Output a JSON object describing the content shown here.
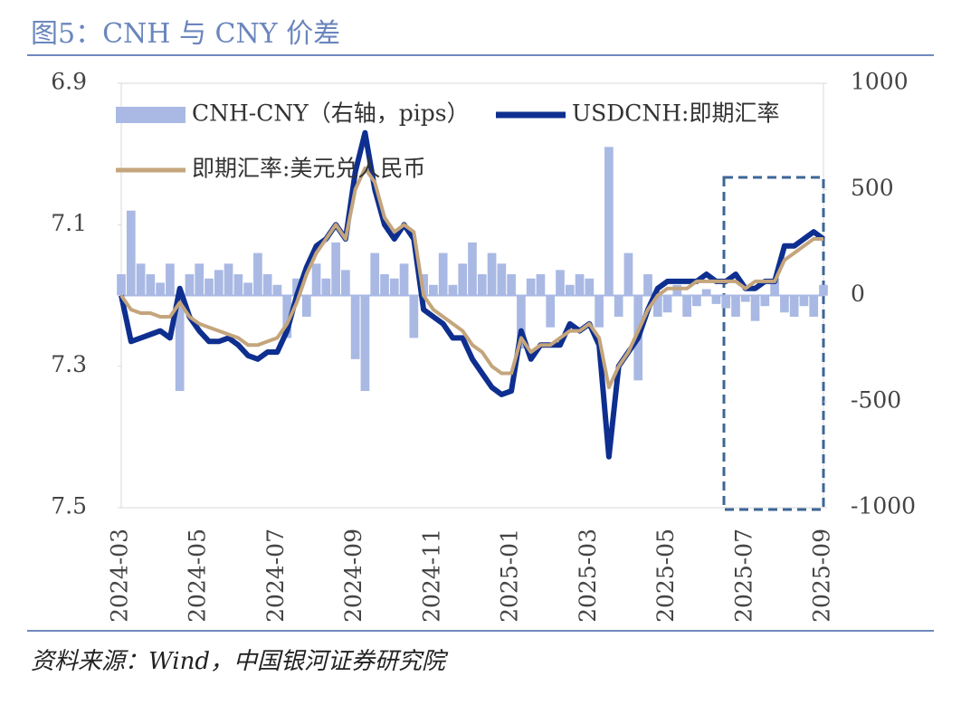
{
  "header": {
    "title": "图5：CNH 与 CNY 价差"
  },
  "chart_data": {
    "type": "bar-line",
    "categories": [
      "2024-03",
      null,
      null,
      null,
      null,
      null,
      null,
      null,
      "2024-05",
      null,
      null,
      null,
      null,
      null,
      null,
      null,
      "2024-07",
      null,
      null,
      null,
      null,
      null,
      null,
      null,
      "2024-09",
      null,
      null,
      null,
      null,
      null,
      null,
      null,
      "2024-11",
      null,
      null,
      null,
      null,
      null,
      null,
      null,
      "2025-01",
      null,
      null,
      null,
      null,
      null,
      null,
      null,
      "2025-03",
      null,
      null,
      null,
      null,
      null,
      null,
      null,
      "2025-05",
      null,
      null,
      null,
      null,
      null,
      null,
      null,
      "2025-07",
      null,
      null,
      null,
      null,
      null,
      null,
      null,
      "2025-09"
    ],
    "series": [
      {
        "name": "CNH-CNY（右轴，pips）",
        "type": "bar",
        "axis": "y2",
        "color": "#a9b9e4",
        "values": [
          100,
          400,
          150,
          100,
          60,
          150,
          -450,
          100,
          150,
          80,
          120,
          150,
          100,
          60,
          200,
          100,
          50,
          -200,
          80,
          -100,
          150,
          80,
          250,
          120,
          -300,
          -450,
          200,
          100,
          80,
          150,
          -200,
          100,
          50,
          200,
          50,
          150,
          250,
          100,
          200,
          150,
          100,
          -250,
          80,
          100,
          -150,
          120,
          50,
          100,
          80,
          -150,
          700,
          -100,
          200,
          -400,
          100,
          -100,
          -80,
          50,
          -100,
          -50,
          30,
          -40,
          -60,
          -100,
          -30,
          -120,
          -50,
          80,
          -80,
          -100,
          -50,
          -100,
          50
        ]
      },
      {
        "name": "USDCNH:即期汇率",
        "type": "line",
        "color": "#0e2f8f",
        "values": [
          7.2,
          7.265,
          7.26,
          7.255,
          7.25,
          7.26,
          7.19,
          7.23,
          7.25,
          7.265,
          7.265,
          7.26,
          7.27,
          7.285,
          7.29,
          7.28,
          7.28,
          7.25,
          7.2,
          7.16,
          7.13,
          7.12,
          7.1,
          7.12,
          7.025,
          6.97,
          7.05,
          7.1,
          7.12,
          7.1,
          7.12,
          7.22,
          7.23,
          7.24,
          7.26,
          7.26,
          7.29,
          7.31,
          7.33,
          7.34,
          7.335,
          7.25,
          7.29,
          7.27,
          7.27,
          7.27,
          7.24,
          7.25,
          7.24,
          7.27,
          7.428,
          7.3,
          7.28,
          7.26,
          7.22,
          7.19,
          7.18,
          7.18,
          7.18,
          7.18,
          7.17,
          7.18,
          7.18,
          7.17,
          7.19,
          7.19,
          7.18,
          7.18,
          7.13,
          7.13,
          7.12,
          7.11,
          7.12
        ]
      },
      {
        "name": "即期汇率:美元兑人民币",
        "type": "line",
        "color": "#c4a57c",
        "values": [
          7.2,
          7.22,
          7.225,
          7.225,
          7.23,
          7.23,
          7.21,
          7.23,
          7.24,
          7.245,
          7.25,
          7.255,
          7.26,
          7.27,
          7.27,
          7.265,
          7.26,
          7.24,
          7.21,
          7.17,
          7.14,
          7.12,
          7.1,
          7.12,
          7.05,
          7.02,
          7.04,
          7.09,
          7.11,
          7.1,
          7.11,
          7.2,
          7.22,
          7.23,
          7.24,
          7.25,
          7.27,
          7.28,
          7.3,
          7.31,
          7.31,
          7.26,
          7.28,
          7.27,
          7.27,
          7.26,
          7.25,
          7.25,
          7.24,
          7.26,
          7.33,
          7.3,
          7.28,
          7.25,
          7.22,
          7.2,
          7.19,
          7.19,
          7.19,
          7.18,
          7.18,
          7.18,
          7.18,
          7.18,
          7.19,
          7.18,
          7.18,
          7.18,
          7.15,
          7.14,
          7.13,
          7.12,
          7.12
        ]
      }
    ],
    "ylim": [
      6.9,
      7.5
    ],
    "y_inverted": true,
    "yticks": [
      6.9,
      7.1,
      7.3,
      7.5
    ],
    "y2lim": [
      -1000,
      1000
    ],
    "y2ticks": [
      1000,
      500,
      0,
      -500,
      -1000
    ],
    "grid": false
  },
  "source": "资料来源：Wind，中国银河证券研究院"
}
